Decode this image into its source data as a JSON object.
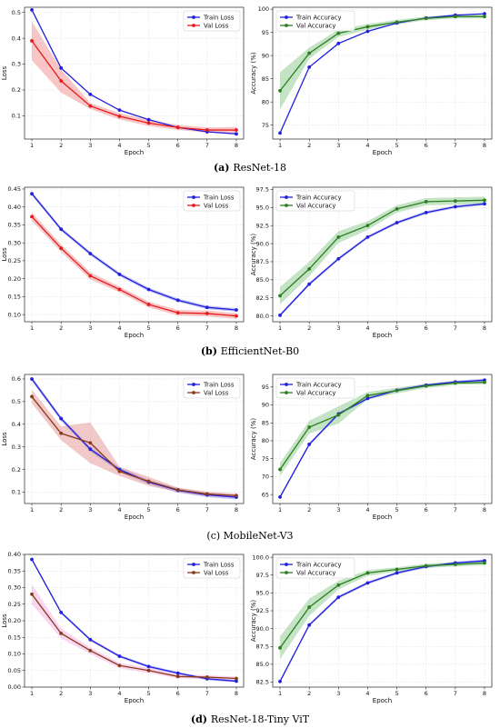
{
  "colors": {
    "train_loss": "#1f1fdd",
    "val_loss_red": "#e8191c",
    "val_loss_brown": "#8b3a1a",
    "band_red": "#f08080",
    "band_pink": "#f4a6e0",
    "train_acc": "#1f1fdd",
    "val_acc": "#2a7f1f",
    "band_green": "#7fc27f",
    "band_blue": "#8a8ae8"
  },
  "chart_data": [
    {
      "type": "line",
      "panel": "a",
      "metric": "loss",
      "caption_label": "(a)",
      "caption_text": "ResNet-18",
      "xlabel": "Epoch",
      "ylabel": "Loss",
      "x": [
        1,
        2,
        3,
        4,
        5,
        6,
        7,
        8
      ],
      "ylim": [
        0.01,
        0.52
      ],
      "xticks": [
        1,
        2,
        3,
        4,
        5,
        6,
        7,
        8
      ],
      "yticks": [
        0.1,
        0.2,
        0.3,
        0.4,
        0.5
      ],
      "ytick_labels": [
        "0.1",
        "0.2",
        "0.3",
        "0.4",
        "0.5"
      ],
      "grid": true,
      "legend": "upper right",
      "series": [
        {
          "name": "Train Loss",
          "color": "#1f1fdd",
          "values": [
            0.51,
            0.285,
            0.183,
            0.122,
            0.085,
            0.055,
            0.038,
            0.03
          ],
          "band": 0
        },
        {
          "name": "Val Loss",
          "color": "#e8191c",
          "band_color": "#f08080",
          "values": [
            0.39,
            0.235,
            0.138,
            0.098,
            0.072,
            0.055,
            0.045,
            0.045
          ],
          "band": [
            0.075,
            0.045,
            0.012,
            0.012,
            0.012,
            0.01,
            0.01,
            0.012
          ]
        }
      ]
    },
    {
      "type": "line",
      "panel": "a",
      "metric": "accuracy",
      "xlabel": "Epoch",
      "ylabel": "Accuracy (%)",
      "x": [
        1,
        2,
        3,
        4,
        5,
        6,
        7,
        8
      ],
      "ylim": [
        72,
        100.4
      ],
      "xticks": [
        1,
        2,
        3,
        4,
        5,
        6,
        7,
        8
      ],
      "yticks": [
        75,
        80,
        85,
        90,
        95,
        100
      ],
      "ytick_labels": [
        "75",
        "80",
        "85",
        "90",
        "95",
        "100"
      ],
      "grid": true,
      "legend": "upper left",
      "series": [
        {
          "name": "Train Accuracy",
          "color": "#1f1fdd",
          "values": [
            73.3,
            87.5,
            92.6,
            95.2,
            97.0,
            98.1,
            98.7,
            99.0
          ],
          "band": 0
        },
        {
          "name": "Val Accuracy",
          "color": "#2a7f1f",
          "band_color": "#7fc27f",
          "values": [
            82.4,
            90.5,
            94.8,
            96.2,
            97.2,
            98.0,
            98.4,
            98.4
          ],
          "band": [
            4.0,
            1.2,
            0.8,
            0.6,
            0.5,
            0.4,
            0.4,
            0.4
          ]
        }
      ]
    },
    {
      "type": "line",
      "panel": "b",
      "metric": "loss",
      "caption_label": "(b)",
      "caption_text": "EfficientNet-B0",
      "xlabel": "Epoch",
      "ylabel": "Loss",
      "x": [
        1,
        2,
        3,
        4,
        5,
        6,
        7,
        8
      ],
      "ylim": [
        0.08,
        0.455
      ],
      "xticks": [
        1,
        2,
        3,
        4,
        5,
        6,
        7,
        8
      ],
      "yticks": [
        0.1,
        0.15,
        0.2,
        0.25,
        0.3,
        0.35,
        0.4,
        0.45
      ],
      "ytick_labels": [
        "0.10",
        "0.15",
        "0.20",
        "0.25",
        "0.30",
        "0.35",
        "0.40",
        "0.45"
      ],
      "grid": true,
      "legend": "upper right",
      "series": [
        {
          "name": "Train Loss",
          "color": "#1f1fdd",
          "values": [
            0.437,
            0.338,
            0.27,
            0.212,
            0.17,
            0.14,
            0.12,
            0.113
          ],
          "band": 0.005
        },
        {
          "name": "Val Loss",
          "color": "#e8191c",
          "band_color": "#f08080",
          "values": [
            0.373,
            0.285,
            0.208,
            0.17,
            0.128,
            0.105,
            0.103,
            0.096
          ],
          "band": [
            0.012,
            0.01,
            0.01,
            0.008,
            0.008,
            0.008,
            0.008,
            0.008
          ]
        }
      ]
    },
    {
      "type": "line",
      "panel": "b",
      "metric": "accuracy",
      "xlabel": "Epoch",
      "ylabel": "Accuracy (%)",
      "x": [
        1,
        2,
        3,
        4,
        5,
        6,
        7,
        8
      ],
      "ylim": [
        79.2,
        97.8
      ],
      "xticks": [
        1,
        2,
        3,
        4,
        5,
        6,
        7,
        8
      ],
      "yticks": [
        80,
        82.5,
        85,
        87.5,
        90,
        92.5,
        95,
        97.5
      ],
      "ytick_labels": [
        "80.0",
        "82.5",
        "85.0",
        "87.5",
        "90.0",
        "92.5",
        "95.0",
        "97.5"
      ],
      "grid": true,
      "legend": "upper left",
      "series": [
        {
          "name": "Train Accuracy",
          "color": "#1f1fdd",
          "values": [
            80.1,
            84.4,
            87.9,
            90.9,
            92.9,
            94.3,
            95.1,
            95.5
          ],
          "band": 0.2
        },
        {
          "name": "Val Accuracy",
          "color": "#2a7f1f",
          "band_color": "#7fc27f",
          "values": [
            82.8,
            86.5,
            90.9,
            92.5,
            94.8,
            95.8,
            95.9,
            96.0
          ],
          "band": [
            1.2,
            1.0,
            0.8,
            0.6,
            0.5,
            0.5,
            0.5,
            0.5
          ]
        }
      ]
    },
    {
      "type": "line",
      "panel": "c",
      "metric": "loss",
      "caption_label": "",
      "caption_text": "(c) MobileNet-V3",
      "xlabel": "Epoch",
      "ylabel": "Loss",
      "x": [
        1,
        2,
        3,
        4,
        5,
        6,
        7,
        8
      ],
      "ylim": [
        0.05,
        0.62
      ],
      "xticks": [
        1,
        2,
        3,
        4,
        5,
        6,
        7,
        8
      ],
      "yticks": [
        0.1,
        0.2,
        0.3,
        0.4,
        0.5,
        0.6
      ],
      "ytick_labels": [
        "0.1",
        "0.2",
        "0.3",
        "0.4",
        "0.5",
        "0.6"
      ],
      "grid": true,
      "legend": "upper right",
      "series": [
        {
          "name": "Train Loss",
          "color": "#1f1fdd",
          "values": [
            0.6,
            0.425,
            0.29,
            0.2,
            0.145,
            0.108,
            0.088,
            0.078
          ],
          "band": 0.01
        },
        {
          "name": "Val Loss",
          "color": "#8b3a1a",
          "band_color": "#e08888",
          "values": [
            0.522,
            0.36,
            0.318,
            0.192,
            0.148,
            0.11,
            0.092,
            0.085
          ],
          "band": [
            0.03,
            0.03,
            0.09,
            0.02,
            0.02,
            0.01,
            0.01,
            0.01
          ]
        }
      ]
    },
    {
      "type": "line",
      "panel": "c",
      "metric": "accuracy",
      "xlabel": "Epoch",
      "ylabel": "Accuracy (%)",
      "x": [
        1,
        2,
        3,
        4,
        5,
        6,
        7,
        8
      ],
      "ylim": [
        62.5,
        98.5
      ],
      "xticks": [
        1,
        2,
        3,
        4,
        5,
        6,
        7,
        8
      ],
      "yticks": [
        65,
        70,
        75,
        80,
        85,
        90,
        95
      ],
      "ytick_labels": [
        "65",
        "70",
        "75",
        "80",
        "85",
        "90",
        "95"
      ],
      "grid": true,
      "legend": "upper left",
      "series": [
        {
          "name": "Train Accuracy",
          "color": "#1f1fdd",
          "values": [
            64.3,
            79.0,
            87.5,
            91.8,
            94.1,
            95.5,
            96.4,
            96.9
          ],
          "band": 0.4
        },
        {
          "name": "Val Accuracy",
          "color": "#2a7f1f",
          "band_color": "#7fc27f",
          "values": [
            72.0,
            83.8,
            87.2,
            92.6,
            94.0,
            95.3,
            96.1,
            96.3
          ],
          "band": [
            1.8,
            1.8,
            2.4,
            1.0,
            0.8,
            0.6,
            0.5,
            0.5
          ]
        }
      ]
    },
    {
      "type": "line",
      "panel": "d",
      "metric": "loss",
      "caption_label": "(d)",
      "caption_text": "ResNet-18-Tiny ViT",
      "xlabel": "Epoch",
      "ylabel": "Loss",
      "x": [
        1,
        2,
        3,
        4,
        5,
        6,
        7,
        8
      ],
      "ylim": [
        0.0,
        0.4
      ],
      "xticks": [
        1,
        2,
        3,
        4,
        5,
        6,
        7,
        8
      ],
      "yticks": [
        0,
        0.05,
        0.1,
        0.15,
        0.2,
        0.25,
        0.3,
        0.35,
        0.4
      ],
      "ytick_labels": [
        "0.00",
        "0.05",
        "0.10",
        "0.15",
        "0.20",
        "0.25",
        "0.30",
        "0.35",
        "0.40"
      ],
      "grid": true,
      "legend": "upper right",
      "series": [
        {
          "name": "Train Loss",
          "color": "#1f1fdd",
          "values": [
            0.385,
            0.225,
            0.143,
            0.093,
            0.062,
            0.042,
            0.025,
            0.018
          ],
          "band": 0.004
        },
        {
          "name": "Val Loss",
          "color": "#8b3a1a",
          "band_color": "#f4a6e0",
          "values": [
            0.28,
            0.162,
            0.11,
            0.065,
            0.05,
            0.032,
            0.03,
            0.026
          ],
          "band": [
            0.03,
            0.015,
            0.01,
            0.008,
            0.008,
            0.006,
            0.006,
            0.006
          ]
        }
      ]
    },
    {
      "type": "line",
      "panel": "d",
      "metric": "accuracy",
      "xlabel": "Epoch",
      "ylabel": "Accuracy (%)",
      "x": [
        1,
        2,
        3,
        4,
        5,
        6,
        7,
        8
      ],
      "ylim": [
        81.8,
        100.4
      ],
      "xticks": [
        1,
        2,
        3,
        4,
        5,
        6,
        7,
        8
      ],
      "yticks": [
        82.5,
        85,
        87.5,
        90,
        92.5,
        95,
        97.5,
        100
      ],
      "ytick_labels": [
        "82.5",
        "85.0",
        "87.5",
        "90.0",
        "92.5",
        "95.0",
        "97.5",
        "100.0"
      ],
      "grid": true,
      "legend": "upper left",
      "series": [
        {
          "name": "Train Accuracy",
          "color": "#1f1fdd",
          "values": [
            82.6,
            90.5,
            94.4,
            96.4,
            97.8,
            98.7,
            99.2,
            99.5
          ],
          "band": 0.2
        },
        {
          "name": "Val Accuracy",
          "color": "#2a7f1f",
          "band_color": "#7fc27f",
          "values": [
            87.3,
            93.0,
            96.1,
            97.8,
            98.3,
            98.8,
            99.0,
            99.2
          ],
          "band": [
            1.6,
            1.2,
            0.6,
            0.4,
            0.3,
            0.3,
            0.3,
            0.3
          ]
        }
      ]
    }
  ]
}
